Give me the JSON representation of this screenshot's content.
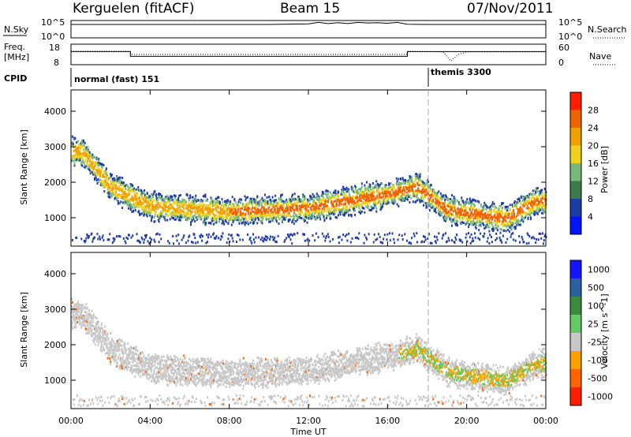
{
  "header": {
    "site": "Kerguelen (fitACF)",
    "beam": "Beam 15",
    "date": "07/Nov/2011"
  },
  "panels": {
    "nsky": {
      "label": "N.Sky",
      "ticks": [
        "10^5",
        "10^0"
      ]
    },
    "nsearch": {
      "label": "N.Search",
      "ticks": [
        "10^5",
        "10^0"
      ]
    },
    "freq": {
      "label_top": "Freq.",
      "label_bottom": "[MHz]",
      "ticks": [
        "18",
        "8"
      ]
    },
    "nave": {
      "label": "Nave",
      "ticks": [
        "60",
        "0"
      ]
    },
    "cpid": {
      "label": "CPID",
      "modes": [
        "normal (fast) 151",
        "themis 3300"
      ]
    }
  },
  "xaxis": {
    "label": "Time UT",
    "ticks": [
      "00:00",
      "04:00",
      "08:00",
      "12:00",
      "16:00",
      "20:00",
      "00:00"
    ]
  },
  "colors": {
    "power": [
      "#0014ff",
      "#1e3ca8",
      "#3d7a4b",
      "#78b878",
      "#f0d21e",
      "#f0a000",
      "#f06400",
      "#ff1e00"
    ],
    "velocity": [
      "#1414ff",
      "#2860a0",
      "#3c8a3c",
      "#64c864",
      "#c8c8c8",
      "#ffa000",
      "#ff6400",
      "#ff1e00"
    ]
  },
  "chart_data": [
    {
      "type": "line",
      "title": "Kerguelen (fitACF)",
      "description_from_axes": "N.Sky / N.Search counts",
      "ylabel": "N.Sky",
      "y2label": "N.Search",
      "x_hours": [
        0,
        2,
        4,
        6,
        8,
        10,
        12,
        12.5,
        13,
        13.5,
        14,
        14.5,
        15,
        15.5,
        16,
        16.5,
        17,
        18,
        20,
        22,
        24
      ],
      "n_sky_log10": [
        4.2,
        4.2,
        4.2,
        4.2,
        4.2,
        4.2,
        4.4,
        4.9,
        4.5,
        4.8,
        4.5,
        4.9,
        4.7,
        4.8,
        4.6,
        4.9,
        4.3,
        4.2,
        4.2,
        4.2,
        4.2
      ]
    },
    {
      "type": "line",
      "ylabel": "Freq. [MHz]",
      "y2label": "Nave",
      "ylim": [
        8,
        18
      ],
      "y2lim": [
        0,
        60
      ],
      "x_hours": [
        0,
        3,
        3,
        17,
        17,
        24
      ],
      "freq_mhz": [
        14.5,
        14.5,
        12.0,
        12.0,
        14.5,
        14.5
      ],
      "nave_x_hours": [
        0,
        3,
        3,
        17,
        17,
        18.8,
        19.2,
        19.6,
        20,
        24
      ],
      "nave": [
        40,
        40,
        30,
        30,
        40,
        38,
        10,
        30,
        38,
        38
      ]
    },
    {
      "type": "heatmap",
      "ylabel": "Slant Range [km]",
      "xlabel": "Time UT",
      "colorbar_label": "Power [dB]",
      "colorbar_ticks": [
        "4",
        "8",
        "12",
        "16",
        "20",
        "24",
        "28"
      ],
      "ylim": [
        200,
        4600
      ],
      "yticks": [
        "4000",
        "3000",
        "2000",
        "1000"
      ],
      "xlim": [
        0,
        24
      ],
      "feature_center_range_km": [
        {
          "x": 0.5,
          "y": 2900
        },
        {
          "x": 2,
          "y": 1900
        },
        {
          "x": 4,
          "y": 1350
        },
        {
          "x": 8,
          "y": 1200
        },
        {
          "x": 12,
          "y": 1300
        },
        {
          "x": 14,
          "y": 1500
        },
        {
          "x": 16,
          "y": 1700
        },
        {
          "x": 17.5,
          "y": 1900
        },
        {
          "x": 19,
          "y": 1250
        },
        {
          "x": 22,
          "y": 1000
        },
        {
          "x": 23.5,
          "y": 1500
        }
      ]
    },
    {
      "type": "heatmap",
      "ylabel": "Slant Range [km]",
      "xlabel": "Time UT",
      "colorbar_label": "Velocity [m s^-1]",
      "colorbar_ticks": [
        "1000",
        "500",
        "100",
        "25",
        "-25",
        "-100",
        "-500",
        "-1000"
      ],
      "ylim": [
        200,
        4600
      ],
      "yticks": [
        "4000",
        "3000",
        "2000",
        "1000"
      ],
      "xlim": [
        0,
        24
      ]
    }
  ]
}
